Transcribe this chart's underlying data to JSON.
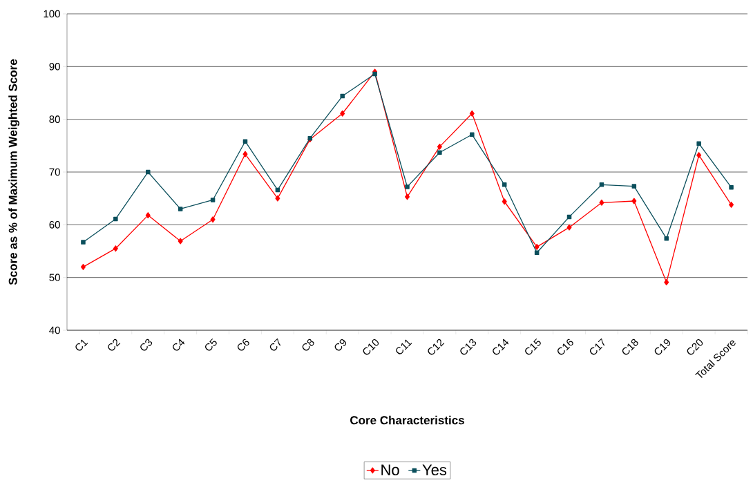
{
  "chart_data": {
    "type": "line",
    "xlabel": "Core Characteristics",
    "ylabel": "Score as % of Maximum Weighted Score",
    "categories": [
      "C1",
      "C2",
      "C3",
      "C4",
      "C5",
      "C6",
      "C7",
      "C8",
      "C9",
      "C10",
      "C11",
      "C12",
      "C13",
      "C14",
      "C15",
      "C16",
      "C17",
      "C18",
      "C19",
      "C20",
      "Total Score"
    ],
    "series": [
      {
        "name": "No",
        "color": "#ff0000",
        "marker": "diamond",
        "values": [
          52.0,
          55.5,
          61.8,
          56.9,
          61.0,
          73.4,
          65.0,
          76.2,
          81.1,
          89.0,
          65.3,
          74.8,
          81.1,
          64.4,
          55.8,
          59.5,
          64.2,
          64.5,
          49.1,
          73.2,
          63.8
        ]
      },
      {
        "name": "Yes",
        "color": "#0b4f5c",
        "marker": "square",
        "values": [
          56.7,
          61.1,
          70.0,
          63.0,
          64.7,
          75.8,
          66.6,
          76.4,
          84.4,
          88.6,
          67.2,
          73.7,
          77.1,
          67.6,
          54.7,
          61.5,
          67.6,
          67.3,
          57.4,
          75.4,
          67.1
        ]
      }
    ],
    "ylim": [
      40,
      100
    ],
    "yticks": [
      40,
      50,
      60,
      70,
      80,
      90,
      100
    ],
    "grid": "y",
    "legend": "bottom",
    "line_style": "solid"
  }
}
